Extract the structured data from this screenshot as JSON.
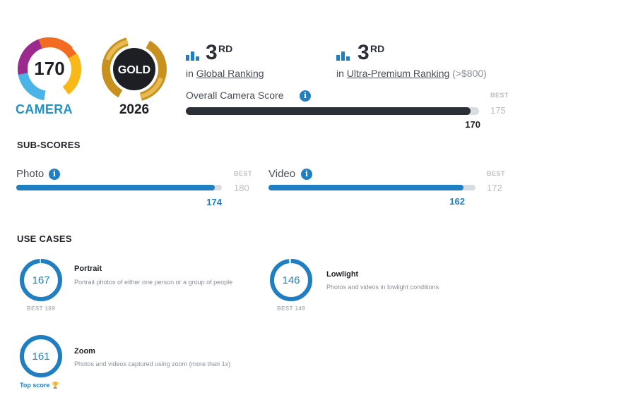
{
  "badge": {
    "score": "170",
    "label": "CAMERA",
    "colors": [
      "#f26b21",
      "#f8b818",
      "#9c2a8e",
      "#1f93c8",
      "#4bb4e6"
    ]
  },
  "award": {
    "tier": "GOLD",
    "year": "2026",
    "colors": [
      "#c8901e",
      "#e8bb52",
      "#1d1f24"
    ]
  },
  "rankings": [
    {
      "icon": "bar-chart-icon",
      "position": "3",
      "suffix": "RD",
      "prefix": "in",
      "category": "Global Ranking",
      "extra": ""
    },
    {
      "icon": "bar-chart-icon",
      "position": "3",
      "suffix": "RD",
      "prefix": "in",
      "category": "Ultra-Premium Ranking",
      "extra": "(>$800)"
    }
  ],
  "overall": {
    "label": "Overall Camera Score",
    "info_icon": "info-icon",
    "info_glyph": "i",
    "value": "170",
    "best_label": "BEST",
    "best": "175",
    "fill_ratio": 0.971,
    "color": "#2b2f36"
  },
  "subscores": {
    "heading": "SUB-SCORES",
    "items": [
      {
        "label": "Photo",
        "value": "174",
        "best_label": "BEST",
        "best": "180",
        "fill_ratio": 0.967,
        "color": "#1f7fc2"
      },
      {
        "label": "Video",
        "value": "162",
        "best_label": "BEST",
        "best": "172",
        "fill_ratio": 0.942,
        "color": "#1f7fc2"
      }
    ]
  },
  "use_cases": {
    "heading": "USE CASES",
    "items": [
      {
        "title": "Portrait",
        "score": "167",
        "description": "Portrait photos of either one person or a group of people",
        "footer": "BEST 169",
        "fill_ratio": 0.988
      },
      {
        "title": "Lowlight",
        "score": "146",
        "description": "Photos and videos in lowlight conditions",
        "footer": "BEST 149",
        "fill_ratio": 0.98
      },
      {
        "title": "Zoom",
        "score": "161",
        "description": "Photos and videos captured using zoom (more than 1x)",
        "footer": "Top score",
        "footer_icon": "trophy-icon",
        "fill_ratio": 1.0
      }
    ],
    "ring_color": "#1f7fc2",
    "ring_track": "#d9dce0"
  }
}
